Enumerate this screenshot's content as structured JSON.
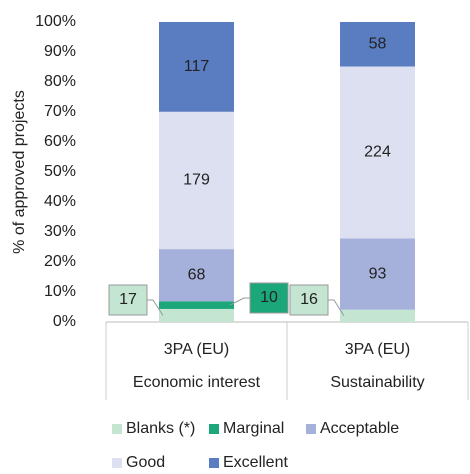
{
  "chart_data": {
    "type": "stacked_bar_100",
    "y_label": "% of approved projects",
    "categories": [
      "3PA (EU)",
      "3PA (EU)"
    ],
    "groups": [
      "Economic interest",
      "Sustainability"
    ],
    "series": [
      {
        "name": "Blanks (*)",
        "color": "#c3e5d2",
        "values": [
          4.35,
          4.09
        ],
        "value_labels": [
          "17",
          "16"
        ]
      },
      {
        "name": "Marginal",
        "color": "#1ca77a",
        "values": [
          2.56,
          0
        ],
        "value_labels": [
          "10",
          null
        ]
      },
      {
        "name": "Acceptable",
        "color": "#a5b1da",
        "values": [
          17.39,
          23.79
        ],
        "value_labels": [
          "68",
          "93"
        ]
      },
      {
        "name": "Good",
        "color": "#dde0f1",
        "values": [
          45.78,
          57.29
        ],
        "value_labels": [
          "179",
          "224"
        ]
      },
      {
        "name": "Excellent",
        "color": "#5a7dc1",
        "values": [
          29.92,
          14.83
        ],
        "value_labels": [
          "117",
          "58"
        ]
      }
    ],
    "ylim": [
      0,
      100
    ],
    "yticks": [
      {
        "value": 0,
        "label": "0%"
      },
      {
        "value": 10,
        "label": "10%"
      },
      {
        "value": 20,
        "label": "20%"
      },
      {
        "value": 30,
        "label": "30%"
      },
      {
        "value": 40,
        "label": "40%"
      },
      {
        "value": 50,
        "label": "50%"
      },
      {
        "value": 60,
        "label": "60%"
      },
      {
        "value": 70,
        "label": "70%"
      },
      {
        "value": 80,
        "label": "80%"
      },
      {
        "value": 90,
        "label": "90%"
      },
      {
        "value": 100,
        "label": "100%"
      }
    ],
    "legend": "bottom"
  }
}
